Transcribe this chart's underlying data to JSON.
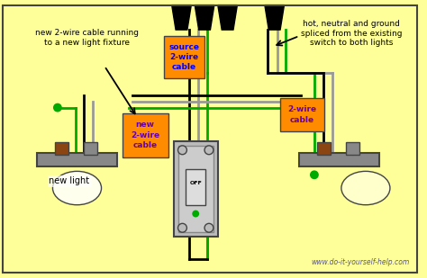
{
  "bg_color": "#FFFF99",
  "website": "www.do-it-yourself-help.com",
  "labels": {
    "top_left": "new 2-wire cable running\nto a new light fixture",
    "source": "source\n2-wire\ncable",
    "new_cable": "new\n2-wire\ncable",
    "right_cable": "2-wire\ncable",
    "top_right": "hot, neutral and ground\nspliced from the existing\nswitch to both lights",
    "new_light": "new light"
  },
  "colors": {
    "black": "#000000",
    "white": "#FFFFFF",
    "green": "#00AA00",
    "gray": "#999999",
    "orange_label": "#FF8C00",
    "blue_text": "#0000FF",
    "purple_text": "#6600AA",
    "dark_gray": "#444444",
    "light_gray": "#BBBBBB",
    "med_gray": "#888888",
    "yellow_bg": "#FFFF99",
    "lamp_bulb": "#FFFFCC",
    "lamp_body": "#888888",
    "brown": "#8B4513"
  }
}
